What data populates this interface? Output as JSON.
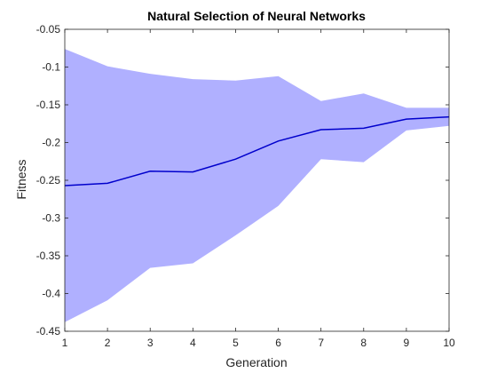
{
  "chart_data": {
    "type": "area",
    "title": "Natural Selection of Neural Networks",
    "xlabel": "Generation",
    "ylabel": "Fitness",
    "xlim": [
      1,
      10
    ],
    "ylim": [
      -0.45,
      -0.05
    ],
    "x": [
      1,
      2,
      3,
      4,
      5,
      6,
      7,
      8,
      9,
      10
    ],
    "xticks": [
      "1",
      "2",
      "3",
      "4",
      "5",
      "6",
      "7",
      "8",
      "9",
      "10"
    ],
    "yticks": [
      {
        "value": -0.05,
        "label": "-0.05"
      },
      {
        "value": -0.1,
        "label": "-0.1"
      },
      {
        "value": -0.15,
        "label": "-0.15"
      },
      {
        "value": -0.2,
        "label": "-0.2"
      },
      {
        "value": -0.25,
        "label": "-0.25"
      },
      {
        "value": -0.3,
        "label": "-0.3"
      },
      {
        "value": -0.35,
        "label": "-0.35"
      },
      {
        "value": -0.4,
        "label": "-0.4"
      },
      {
        "value": -0.45,
        "label": "-0.45"
      }
    ],
    "mean": [
      -0.257,
      -0.254,
      -0.238,
      -0.239,
      -0.222,
      -0.198,
      -0.183,
      -0.181,
      -0.169,
      -0.166
    ],
    "upper": [
      -0.076,
      -0.099,
      -0.109,
      -0.116,
      -0.118,
      -0.112,
      -0.145,
      -0.135,
      -0.154,
      -0.154
    ],
    "lower": [
      -0.438,
      -0.409,
      -0.366,
      -0.36,
      -0.323,
      -0.284,
      -0.222,
      -0.226,
      -0.184,
      -0.178
    ],
    "grid": false,
    "colors": {
      "band": "#b0b0ff",
      "line": "#0000cc",
      "axes": "#262626"
    }
  }
}
